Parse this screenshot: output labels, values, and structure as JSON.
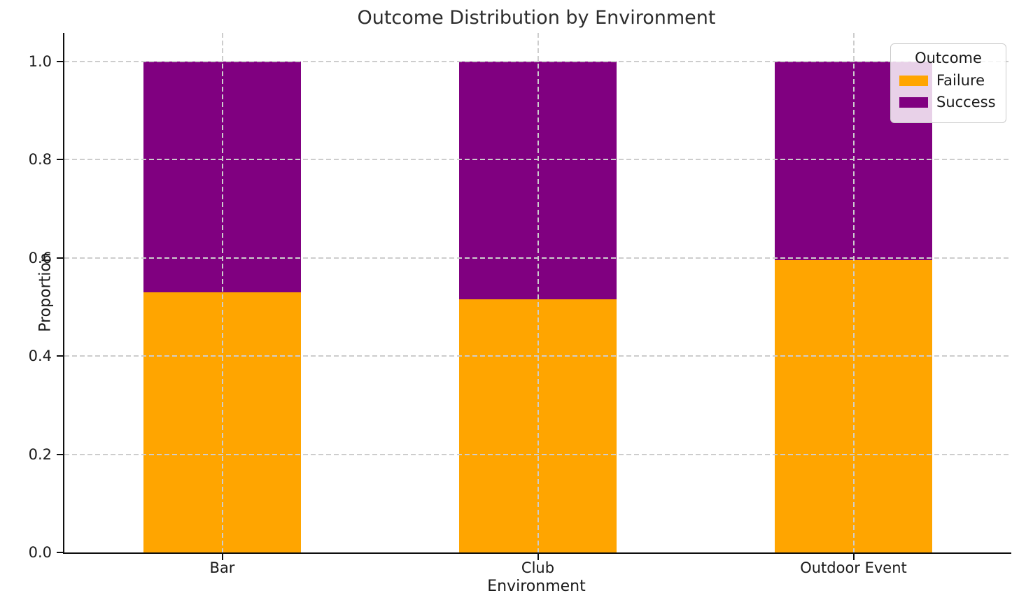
{
  "title": "Outcome Distribution by Environment",
  "legend": {
    "title": "Outcome",
    "entries": [
      {
        "label": "Failure",
        "color": "#FFA500"
      },
      {
        "label": "Success",
        "color": "#800080"
      }
    ]
  },
  "colors": {
    "failure": "#FFA500",
    "success": "#800080",
    "grid": "#cdcdcd",
    "spine": "#0f0f0f",
    "text": "#1a1a1a"
  },
  "chart_data": {
    "type": "bar",
    "stacked": true,
    "title": "Outcome Distribution by Environment",
    "xlabel": "Environment",
    "ylabel": "Proportion",
    "categories": [
      "Bar",
      "Club",
      "Outdoor Event"
    ],
    "series": [
      {
        "name": "Failure",
        "color": "#FFA500",
        "values": [
          0.53,
          0.515,
          0.595
        ]
      },
      {
        "name": "Success",
        "color": "#800080",
        "values": [
          0.47,
          0.485,
          0.405
        ]
      }
    ],
    "ylim": [
      0.0,
      1.0
    ],
    "yticks": [
      0.0,
      0.2,
      0.4,
      0.6,
      0.8,
      1.0
    ],
    "ytick_labels": [
      "0.0",
      "0.2",
      "0.4",
      "0.6",
      "0.8",
      "1.0"
    ],
    "grid": "both-dashed, drawn above bars",
    "bar_width_fraction": 0.5,
    "legend_position": "upper right"
  }
}
